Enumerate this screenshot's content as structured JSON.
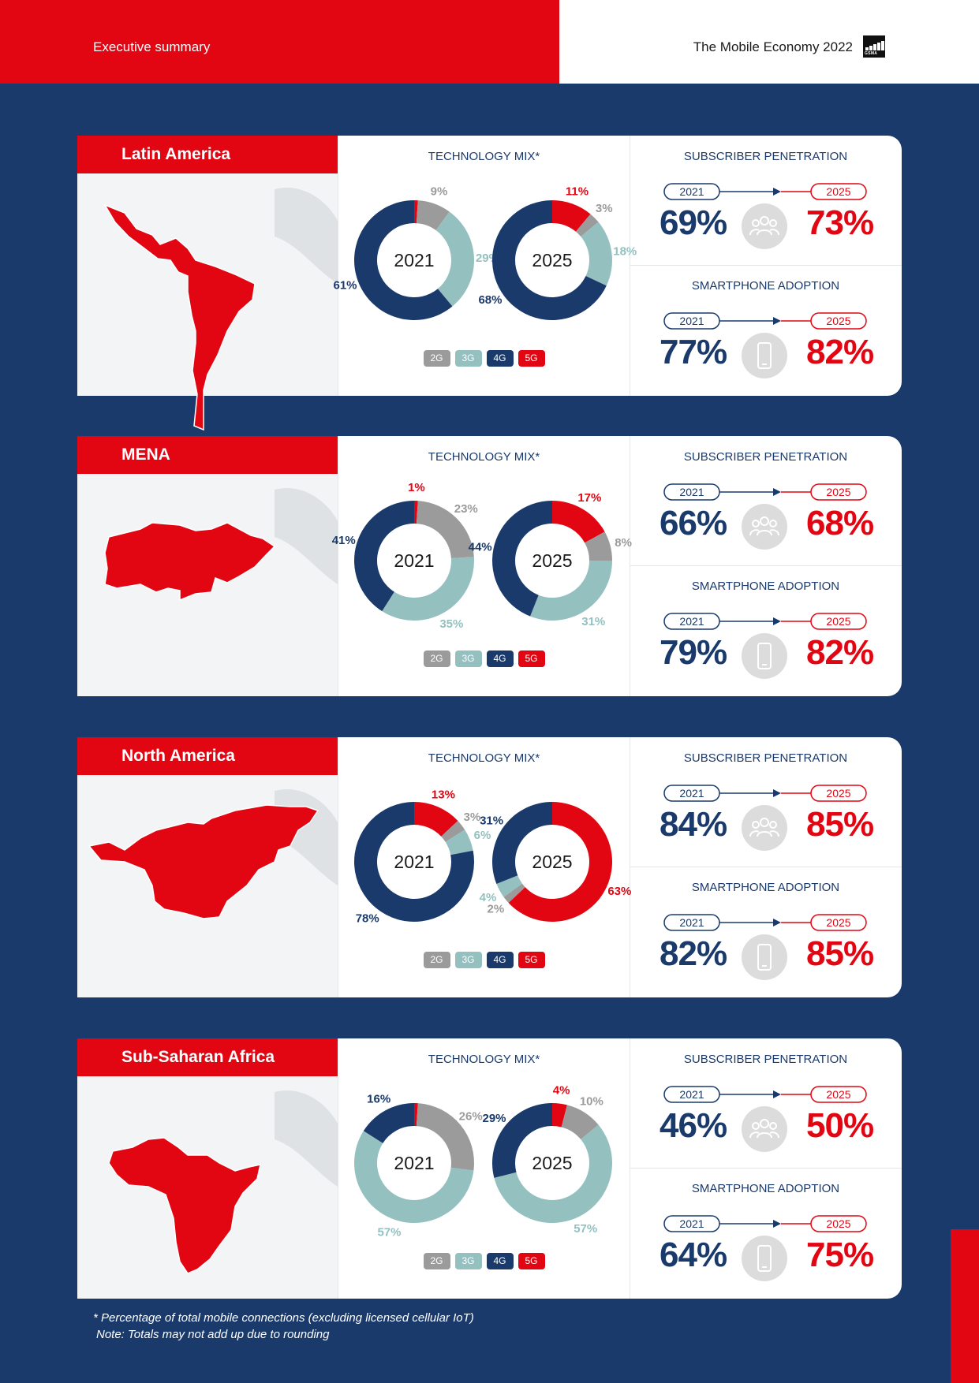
{
  "header": {
    "left_title": "Executive summary",
    "right_title": "The Mobile Economy 2022",
    "logo_text": "GSMA"
  },
  "colors": {
    "2G": "#9b9b9b",
    "3G": "#95c0c0",
    "4G": "#1a3a6b",
    "5G": "#e20613"
  },
  "section_labels": {
    "technology_mix": "TECHNOLOGY MIX*",
    "subscriber_penetration": "SUBSCRIBER PENETRATION",
    "smartphone_adoption": "SMARTPHONE ADOPTION",
    "from_year": "2021",
    "to_year": "2025",
    "legend": [
      "2G",
      "3G",
      "4G",
      "5G"
    ]
  },
  "chart_data": [
    {
      "type": "pie",
      "region": "Latin America",
      "categories": [
        "2G",
        "3G",
        "4G",
        "5G"
      ],
      "series": [
        {
          "name": "2021",
          "values": [
            9,
            29,
            61,
            1
          ],
          "labels": [
            "9%",
            "29%",
            "61%",
            ""
          ]
        },
        {
          "name": "2025",
          "values": [
            3,
            18,
            68,
            11
          ],
          "labels": [
            "3%",
            "18%",
            "68%",
            "11%"
          ]
        }
      ],
      "subscriber_penetration": {
        "from": "69%",
        "to": "73%"
      },
      "smartphone_adoption": {
        "from": "77%",
        "to": "82%"
      }
    },
    {
      "type": "pie",
      "region": "MENA",
      "categories": [
        "2G",
        "3G",
        "4G",
        "5G"
      ],
      "series": [
        {
          "name": "2021",
          "values": [
            23,
            35,
            41,
            1
          ],
          "labels": [
            "23%",
            "35%",
            "41%",
            "1%"
          ]
        },
        {
          "name": "2025",
          "values": [
            8,
            31,
            44,
            17
          ],
          "labels": [
            "8%",
            "31%",
            "44%",
            "17%"
          ]
        }
      ],
      "subscriber_penetration": {
        "from": "66%",
        "to": "68%"
      },
      "smartphone_adoption": {
        "from": "79%",
        "to": "82%"
      }
    },
    {
      "type": "pie",
      "region": "North America",
      "categories": [
        "2G",
        "3G",
        "4G",
        "5G"
      ],
      "series": [
        {
          "name": "2021",
          "values": [
            3,
            6,
            78,
            13
          ],
          "labels": [
            "3%",
            "6%",
            "78%",
            "13%"
          ]
        },
        {
          "name": "2025",
          "values": [
            2,
            4,
            31,
            63
          ],
          "labels": [
            "2%",
            "4%",
            "31%",
            "63%"
          ]
        }
      ],
      "subscriber_penetration": {
        "from": "84%",
        "to": "85%"
      },
      "smartphone_adoption": {
        "from": "82%",
        "to": "85%"
      }
    },
    {
      "type": "pie",
      "region": "Sub-Saharan Africa",
      "categories": [
        "2G",
        "3G",
        "4G",
        "5G"
      ],
      "series": [
        {
          "name": "2021",
          "values": [
            26,
            57,
            16,
            1
          ],
          "labels": [
            "26%",
            "57%",
            "16%",
            ""
          ]
        },
        {
          "name": "2025",
          "values": [
            10,
            57,
            29,
            4
          ],
          "labels": [
            "10%",
            "57%",
            "29%",
            "4%"
          ]
        }
      ],
      "subscriber_penetration": {
        "from": "46%",
        "to": "50%"
      },
      "smartphone_adoption": {
        "from": "64%",
        "to": "75%"
      }
    }
  ],
  "footnote": {
    "line1": "* Percentage of total mobile connections (excluding licensed cellular IoT)",
    "line2": "Note: Totals may not add up due to rounding"
  }
}
